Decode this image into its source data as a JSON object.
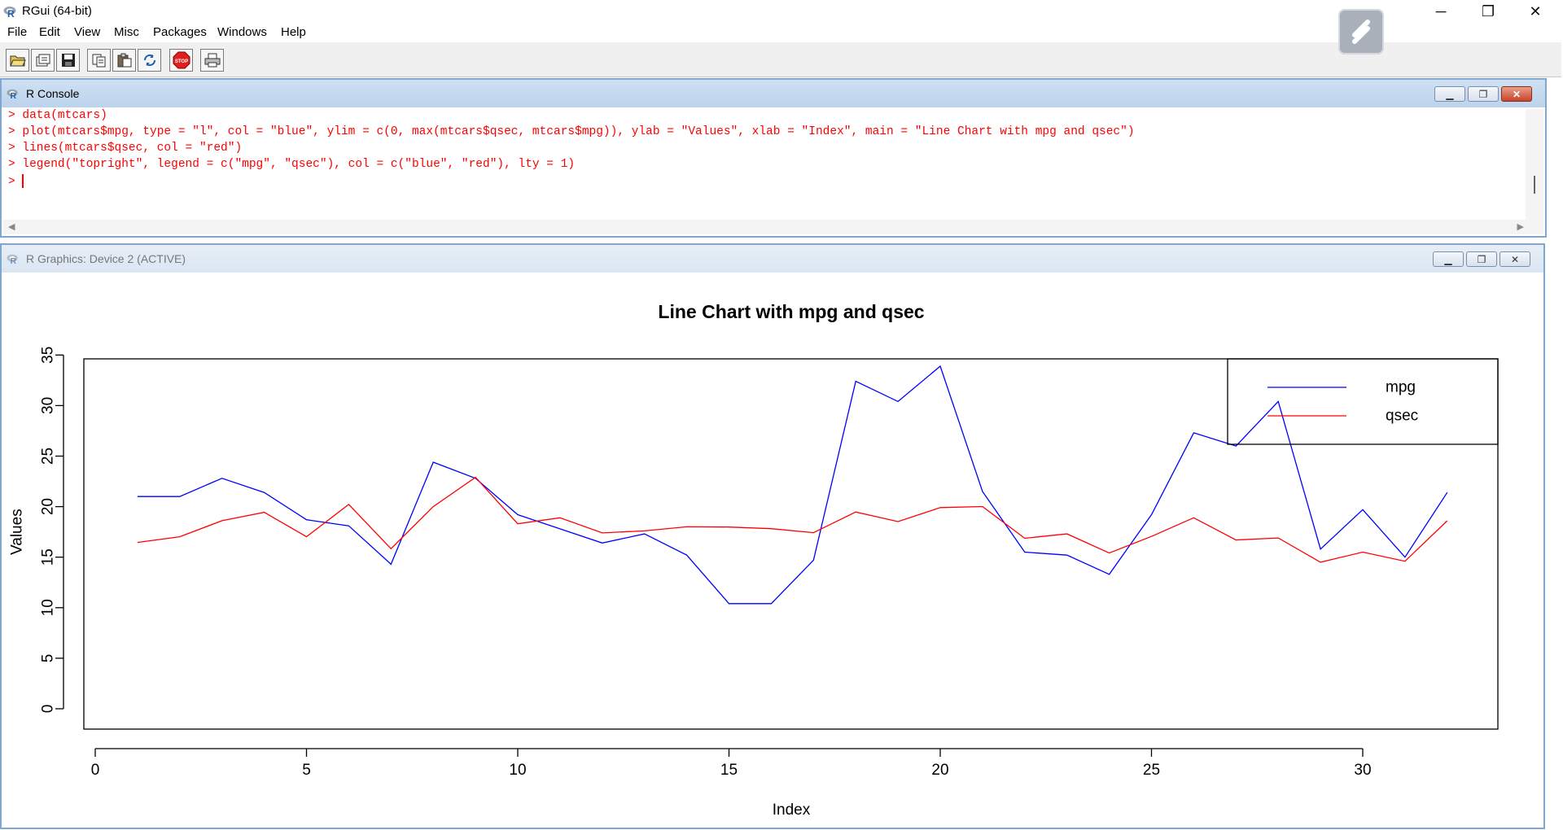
{
  "app": {
    "title": "RGui (64-bit)",
    "window_controls": {
      "minimize": "─",
      "restore": "❐",
      "close": "✕"
    }
  },
  "menu": [
    "File",
    "Edit",
    "View",
    "Misc",
    "Packages",
    "Windows",
    "Help"
  ],
  "toolbar": [
    "open-script-icon",
    "load-workspace-icon",
    "save-workspace-icon",
    "copy-icon",
    "paste-icon",
    "refresh-icon",
    "stop-icon",
    "print-icon"
  ],
  "console": {
    "title": "R Console",
    "lines": [
      "> data(mtcars)",
      "> plot(mtcars$mpg, type = \"l\", col = \"blue\", ylim = c(0, max(mtcars$qsec, mtcars$mpg)), ylab = \"Values\", xlab = \"Index\", main = \"Line Chart with mpg and qsec\")",
      "> lines(mtcars$qsec, col = \"red\")",
      "> legend(\"topright\", legend = c(\"mpg\", \"qsec\"), col = c(\"blue\", \"red\"), lty = 1)",
      "> "
    ]
  },
  "graphics": {
    "title": "R Graphics: Device 2 (ACTIVE)"
  },
  "chart_data": {
    "type": "line",
    "title": "Line Chart with mpg and qsec",
    "xlabel": "Index",
    "ylabel": "Values",
    "xlim": [
      0,
      33
    ],
    "ylim": [
      0,
      35
    ],
    "xticks": [
      0,
      5,
      10,
      15,
      20,
      25,
      30
    ],
    "yticks": [
      0,
      5,
      10,
      15,
      20,
      25,
      30,
      35
    ],
    "x": [
      1,
      2,
      3,
      4,
      5,
      6,
      7,
      8,
      9,
      10,
      11,
      12,
      13,
      14,
      15,
      16,
      17,
      18,
      19,
      20,
      21,
      22,
      23,
      24,
      25,
      26,
      27,
      28,
      29,
      30,
      31,
      32
    ],
    "series": [
      {
        "name": "mpg",
        "color": "#0000ff",
        "values": [
          21.0,
          21.0,
          22.8,
          21.4,
          18.7,
          18.1,
          14.3,
          24.4,
          22.8,
          19.2,
          17.8,
          16.4,
          17.3,
          15.2,
          10.4,
          10.4,
          14.7,
          32.4,
          30.4,
          33.9,
          21.5,
          15.5,
          15.2,
          13.3,
          19.2,
          27.3,
          26.0,
          30.4,
          15.8,
          19.7,
          15.0,
          21.4
        ]
      },
      {
        "name": "qsec",
        "color": "#ff0000",
        "values": [
          16.46,
          17.02,
          18.61,
          19.44,
          17.02,
          20.22,
          15.84,
          20.0,
          22.9,
          18.3,
          18.9,
          17.4,
          17.6,
          18.0,
          17.98,
          17.82,
          17.42,
          19.47,
          18.52,
          19.9,
          20.01,
          16.87,
          17.3,
          15.41,
          17.05,
          18.9,
          16.7,
          16.9,
          14.5,
          15.5,
          14.6,
          18.6
        ]
      }
    ],
    "legend": {
      "position": "topright",
      "entries": [
        "mpg",
        "qsec"
      ]
    },
    "grid": false
  }
}
